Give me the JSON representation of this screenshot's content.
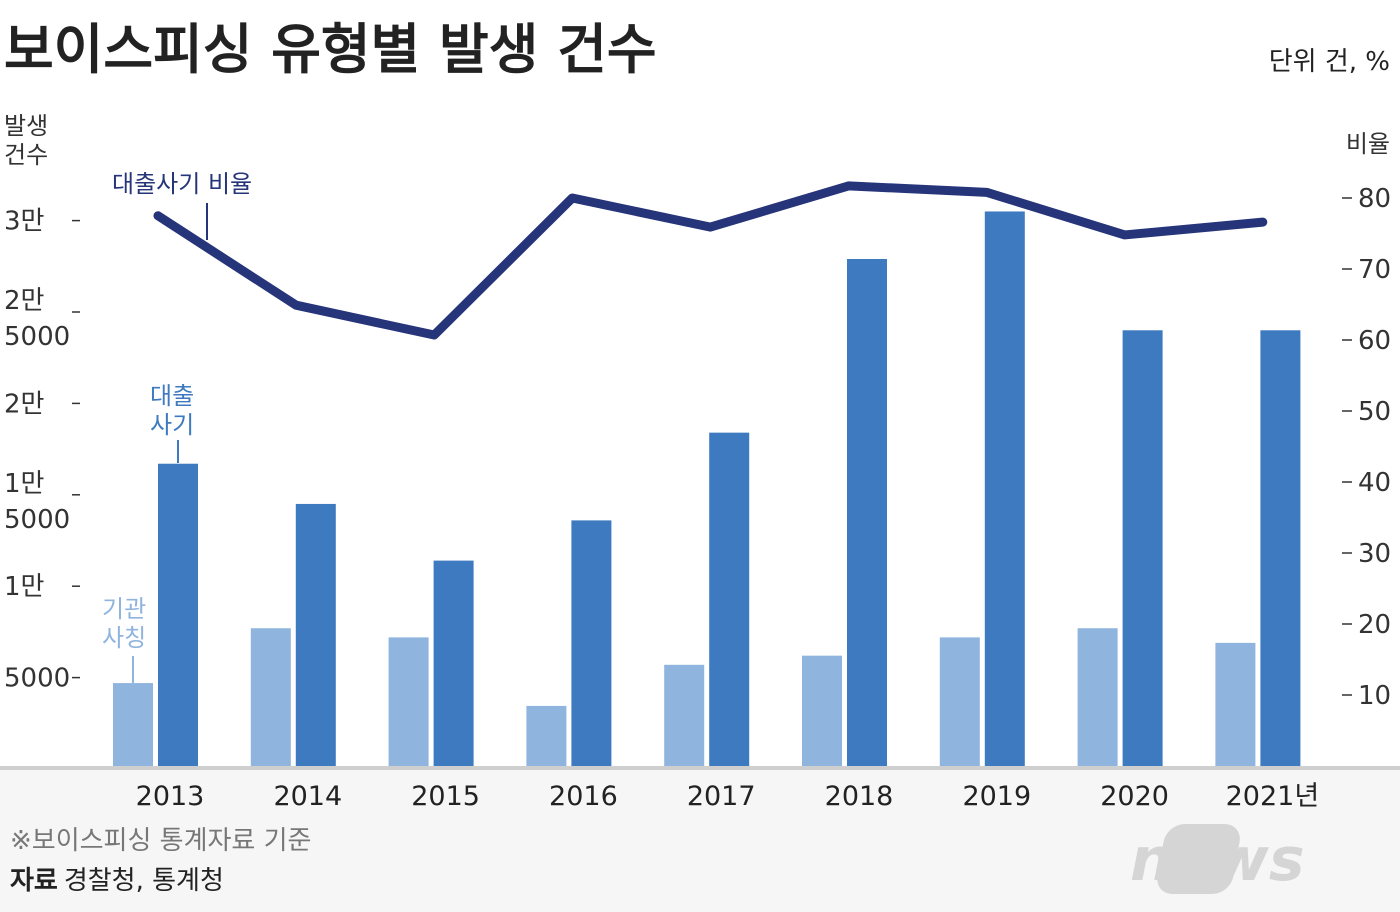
{
  "chart_data": {
    "type": "bar",
    "title": "보이스피싱 유형별 발생 건수",
    "unit": "단위 건, %",
    "left_axis": {
      "label_lines": [
        "발생",
        "건수"
      ],
      "ticks": [
        {
          "value": 5000,
          "lines": [
            "5000"
          ]
        },
        {
          "value": 10000,
          "lines": [
            "1만"
          ]
        },
        {
          "value": 15000,
          "lines": [
            "1만",
            "5000"
          ]
        },
        {
          "value": 20000,
          "lines": [
            "2만"
          ]
        },
        {
          "value": 25000,
          "lines": [
            "2만",
            "5000"
          ]
        },
        {
          "value": 30000,
          "lines": [
            "3만"
          ]
        }
      ],
      "range": [
        0,
        30000
      ]
    },
    "right_axis": {
      "label": "비율",
      "ticks": [
        "10",
        "20",
        "30",
        "40",
        "50",
        "60",
        "70",
        "80"
      ],
      "tick_values": [
        10,
        20,
        30,
        40,
        50,
        60,
        70,
        80
      ],
      "range": [
        0,
        80
      ]
    },
    "categories": [
      "2013",
      "2014",
      "2015",
      "2016",
      "2017",
      "2018",
      "2019",
      "2020",
      "2021년"
    ],
    "series": [
      {
        "name": "기관 사칭",
        "label_lines": [
          "기관",
          "사칭"
        ],
        "type": "bar",
        "axis": "left",
        "color": "#8fb4de",
        "values": [
          4700,
          7700,
          7200,
          3450,
          5700,
          6200,
          7200,
          7700,
          6900
        ]
      },
      {
        "name": "대출 사기",
        "label_lines": [
          "대출",
          "사기"
        ],
        "type": "bar",
        "axis": "left",
        "color": "#3d7abf",
        "values": [
          16700,
          14500,
          11400,
          13600,
          18400,
          27900,
          30500,
          24000,
          24000
        ]
      },
      {
        "name": "대출사기 비율",
        "type": "line",
        "axis": "right",
        "color": "#26347a",
        "values": [
          77.5,
          64.9,
          60.7,
          80.0,
          75.9,
          81.7,
          80.8,
          74.8,
          76.6
        ]
      }
    ],
    "grid": false
  },
  "footer": {
    "note": "※보이스피싱 통계자료 기준",
    "source_label": "자료",
    "source": "경찰청, 통계청",
    "logo": "news1"
  }
}
